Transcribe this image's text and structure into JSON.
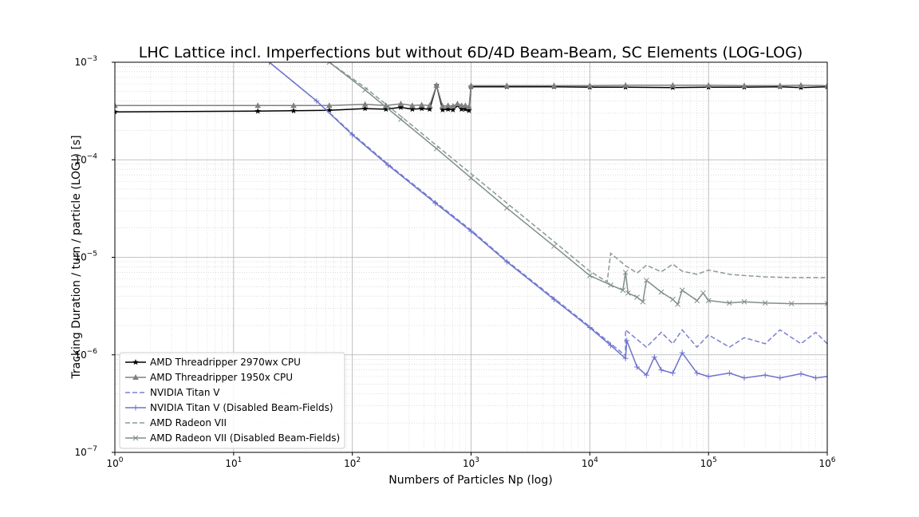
{
  "chart_data": {
    "type": "line",
    "title": "LHC Lattice incl. Imperfections but without 6D/4D Beam-Beam, SC Elements (LOG-LOG)",
    "xlabel": "Numbers of Particles Np (log)",
    "ylabel": "Tracking Duration / turn / particle (LOG!) [s]",
    "xscale": "log",
    "yscale": "log",
    "xlim": [
      1,
      1000000
    ],
    "ylim": [
      1e-07,
      0.001
    ],
    "x_ticks": [
      {
        "base": "10",
        "exp": "0"
      },
      {
        "base": "10",
        "exp": "1"
      },
      {
        "base": "10",
        "exp": "2"
      },
      {
        "base": "10",
        "exp": "3"
      },
      {
        "base": "10",
        "exp": "4"
      },
      {
        "base": "10",
        "exp": "5"
      },
      {
        "base": "10",
        "exp": "6"
      }
    ],
    "y_ticks": [
      {
        "base": "10",
        "exp": "−7"
      },
      {
        "base": "10",
        "exp": "−6"
      },
      {
        "base": "10",
        "exp": "−5"
      },
      {
        "base": "10",
        "exp": "−4"
      },
      {
        "base": "10",
        "exp": "−3"
      }
    ],
    "grid": true,
    "legend_position": "lower-left",
    "series": [
      {
        "name": "AMD Threadripper 2970wx CPU",
        "color": "#000000",
        "dash": "solid",
        "marker": "star",
        "x": [
          1,
          16,
          32,
          64,
          128,
          192,
          256,
          320,
          384,
          448,
          512,
          576,
          640,
          704,
          768,
          832,
          896,
          960,
          1000,
          2000,
          5000,
          10000,
          20000,
          50000,
          100000,
          200000,
          400000,
          600000,
          1000000
        ],
        "y": [
          0.00031,
          0.000315,
          0.000318,
          0.000322,
          0.000335,
          0.00033,
          0.000345,
          0.00033,
          0.000335,
          0.00033,
          0.00058,
          0.000325,
          0.00033,
          0.000325,
          0.00036,
          0.00033,
          0.00033,
          0.00032,
          0.00056,
          0.00056,
          0.00056,
          0.000555,
          0.000555,
          0.00055,
          0.000555,
          0.000555,
          0.00056,
          0.00055,
          0.00056
        ]
      },
      {
        "name": "AMD Threadripper 1950x CPU",
        "color": "#808080",
        "dash": "solid",
        "marker": "triangle",
        "x": [
          1,
          16,
          32,
          64,
          128,
          192,
          256,
          320,
          384,
          448,
          512,
          576,
          640,
          704,
          768,
          832,
          896,
          960,
          1000,
          2000,
          5000,
          10000,
          20000,
          50000,
          100000,
          200000,
          400000,
          600000,
          1000000
        ],
        "y": [
          0.00036,
          0.00036,
          0.00036,
          0.00036,
          0.00037,
          0.00036,
          0.000375,
          0.00036,
          0.000365,
          0.00036,
          0.00058,
          0.000355,
          0.00036,
          0.000355,
          0.000375,
          0.00036,
          0.00036,
          0.00035,
          0.000575,
          0.000575,
          0.000575,
          0.000575,
          0.00058,
          0.00058,
          0.00058,
          0.000575,
          0.000575,
          0.00058,
          0.000575
        ]
      },
      {
        "name": "NVIDIA Titan V",
        "color": "#7b80d0",
        "dash": "dashed",
        "marker": "none",
        "x": [
          20,
          50,
          100,
          200,
          500,
          1000,
          2000,
          5000,
          10000,
          20000,
          20000,
          30000,
          40000,
          50000,
          60000,
          80000,
          100000,
          150000,
          200000,
          300000,
          400000,
          600000,
          800000,
          1000000
        ],
        "y": [
          0.001,
          0.0004,
          0.000185,
          9e-05,
          3.7e-05,
          1.9e-05,
          9.2e-06,
          3.8e-06,
          1.95e-06,
          9.8e-07,
          1.8e-06,
          1.2e-06,
          1.7e-06,
          1.3e-06,
          1.8e-06,
          1.2e-06,
          1.6e-06,
          1.2e-06,
          1.5e-06,
          1.3e-06,
          1.8e-06,
          1.3e-06,
          1.7e-06,
          1.3e-06
        ]
      },
      {
        "name": "NVIDIA Titan V (Disabled Beam-Fields)",
        "color": "#6e73cc",
        "dash": "solid",
        "marker": "plus",
        "x": [
          20,
          50,
          100,
          200,
          500,
          1000,
          2000,
          5000,
          10000,
          15000,
          20000,
          20500,
          25000,
          30000,
          35000,
          40000,
          50000,
          60000,
          80000,
          100000,
          150000,
          200000,
          300000,
          400000,
          600000,
          800000,
          1000000
        ],
        "y": [
          0.001,
          0.0004,
          0.00018,
          8.8e-05,
          3.6e-05,
          1.85e-05,
          9e-06,
          3.7e-06,
          1.9e-06,
          1.25e-06,
          9.2e-07,
          1.4e-06,
          7.5e-07,
          6.2e-07,
          9.5e-07,
          7e-07,
          6.5e-07,
          1.05e-06,
          6.5e-07,
          6e-07,
          6.5e-07,
          5.8e-07,
          6.2e-07,
          5.8e-07,
          6.4e-07,
          5.8e-07,
          6e-07
        ]
      },
      {
        "name": "AMD Radeon VII",
        "color": "#8a9a91",
        "dash": "dashed",
        "marker": "none",
        "x": [
          64,
          128,
          256,
          512,
          1000,
          2000,
          5000,
          10000,
          14000,
          15000,
          20000,
          25000,
          30000,
          40000,
          50000,
          60000,
          80000,
          100000,
          150000,
          200000,
          300000,
          500000,
          1000000
        ],
        "y": [
          0.001,
          0.00055,
          0.00028,
          0.00014,
          7.2e-05,
          3.6e-05,
          1.45e-05,
          7.2e-06,
          5.6e-06,
          1.1e-05,
          8.2e-06,
          6.9e-06,
          8.3e-06,
          7.1e-06,
          8.5e-06,
          7.2e-06,
          6.7e-06,
          7.4e-06,
          6.7e-06,
          6.5e-06,
          6.3e-06,
          6.2e-06,
          6.2e-06
        ]
      },
      {
        "name": "AMD Radeon VII (Disabled Beam-Fields)",
        "color": "#7f8f86",
        "dash": "solid",
        "marker": "x",
        "x": [
          64,
          128,
          256,
          512,
          1000,
          2000,
          5000,
          10000,
          15000,
          19000,
          20000,
          21000,
          25000,
          28000,
          30000,
          40000,
          50000,
          55000,
          60000,
          80000,
          90000,
          100000,
          150000,
          200000,
          300000,
          500000,
          1000000
        ],
        "y": [
          0.001,
          0.00052,
          0.00026,
          0.00013,
          6.5e-05,
          3.2e-05,
          1.3e-05,
          6.5e-06,
          5.2e-06,
          4.6e-06,
          7e-06,
          4.3e-06,
          3.9e-06,
          3.5e-06,
          5.8e-06,
          4.4e-06,
          3.7e-06,
          3.3e-06,
          4.6e-06,
          3.6e-06,
          4.3e-06,
          3.6e-06,
          3.4e-06,
          3.5e-06,
          3.4e-06,
          3.35e-06,
          3.35e-06
        ]
      }
    ]
  }
}
